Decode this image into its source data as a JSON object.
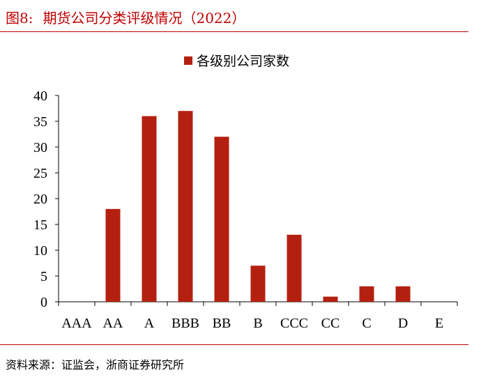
{
  "figure": {
    "label": "图8:",
    "title": "期货公司分类评级情况（2022）",
    "source": "资料来源：证监会，浙商证券研究所"
  },
  "colors": {
    "accent": "#c00000",
    "bar": "#b42010",
    "axis": "#000000"
  },
  "chart_data": {
    "type": "bar",
    "categories": [
      "AAA",
      "AA",
      "A",
      "BBB",
      "BB",
      "B",
      "CCC",
      "CC",
      "C",
      "D",
      "E"
    ],
    "series": [
      {
        "name": "各级别公司家数",
        "values": [
          0,
          18,
          36,
          37,
          32,
          7,
          13,
          1,
          3,
          3,
          0
        ]
      }
    ],
    "ylim": [
      0,
      40
    ],
    "yticks": [
      0,
      5,
      10,
      15,
      20,
      25,
      30,
      35,
      40
    ],
    "grid": false,
    "legend": "top-center"
  }
}
